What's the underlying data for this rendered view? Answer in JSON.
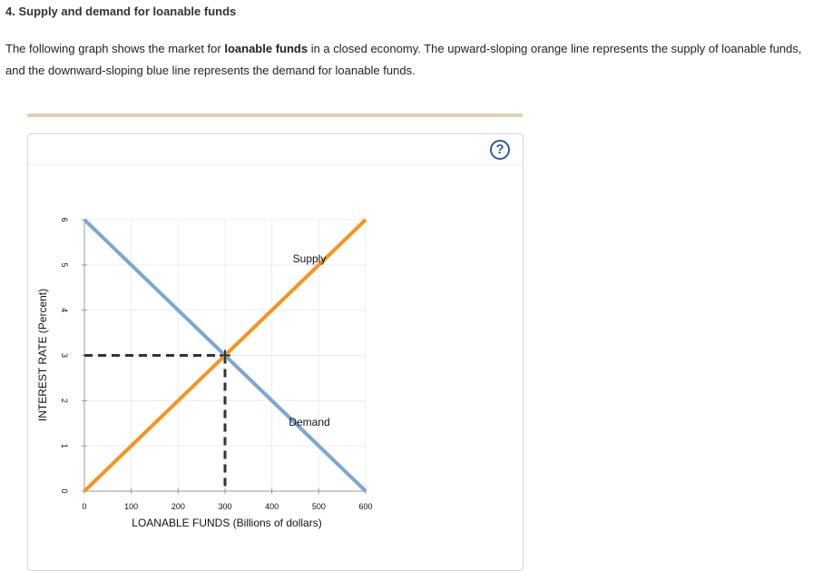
{
  "question": {
    "title": "4. Supply and demand for loanable funds",
    "intro_part1": "The following graph shows the market for ",
    "intro_bold": "loanable funds",
    "intro_part2": " in a closed economy. The upward-sloping orange line represents the supply of loanable funds, and the downward-sloping blue line represents the demand for loanable funds."
  },
  "help": {
    "label": "?"
  },
  "chart_data": {
    "type": "line",
    "xlabel": "LOANABLE FUNDS (Billions of dollars)",
    "ylabel": "INTEREST RATE (Percent)",
    "xlim": [
      0,
      600
    ],
    "ylim": [
      0,
      6
    ],
    "x_ticks": [
      0,
      100,
      200,
      300,
      400,
      500,
      600
    ],
    "y_ticks": [
      0,
      1,
      2,
      3,
      4,
      5,
      6
    ],
    "grid": true,
    "series": [
      {
        "name": "Supply",
        "color": "#f7941d",
        "points": [
          [
            0,
            0
          ],
          [
            600,
            6
          ]
        ]
      },
      {
        "name": "Demand",
        "color": "#7ba7d3",
        "points": [
          [
            0,
            6
          ],
          [
            600,
            0
          ]
        ]
      }
    ],
    "equilibrium": {
      "x": 300,
      "y": 3
    }
  }
}
